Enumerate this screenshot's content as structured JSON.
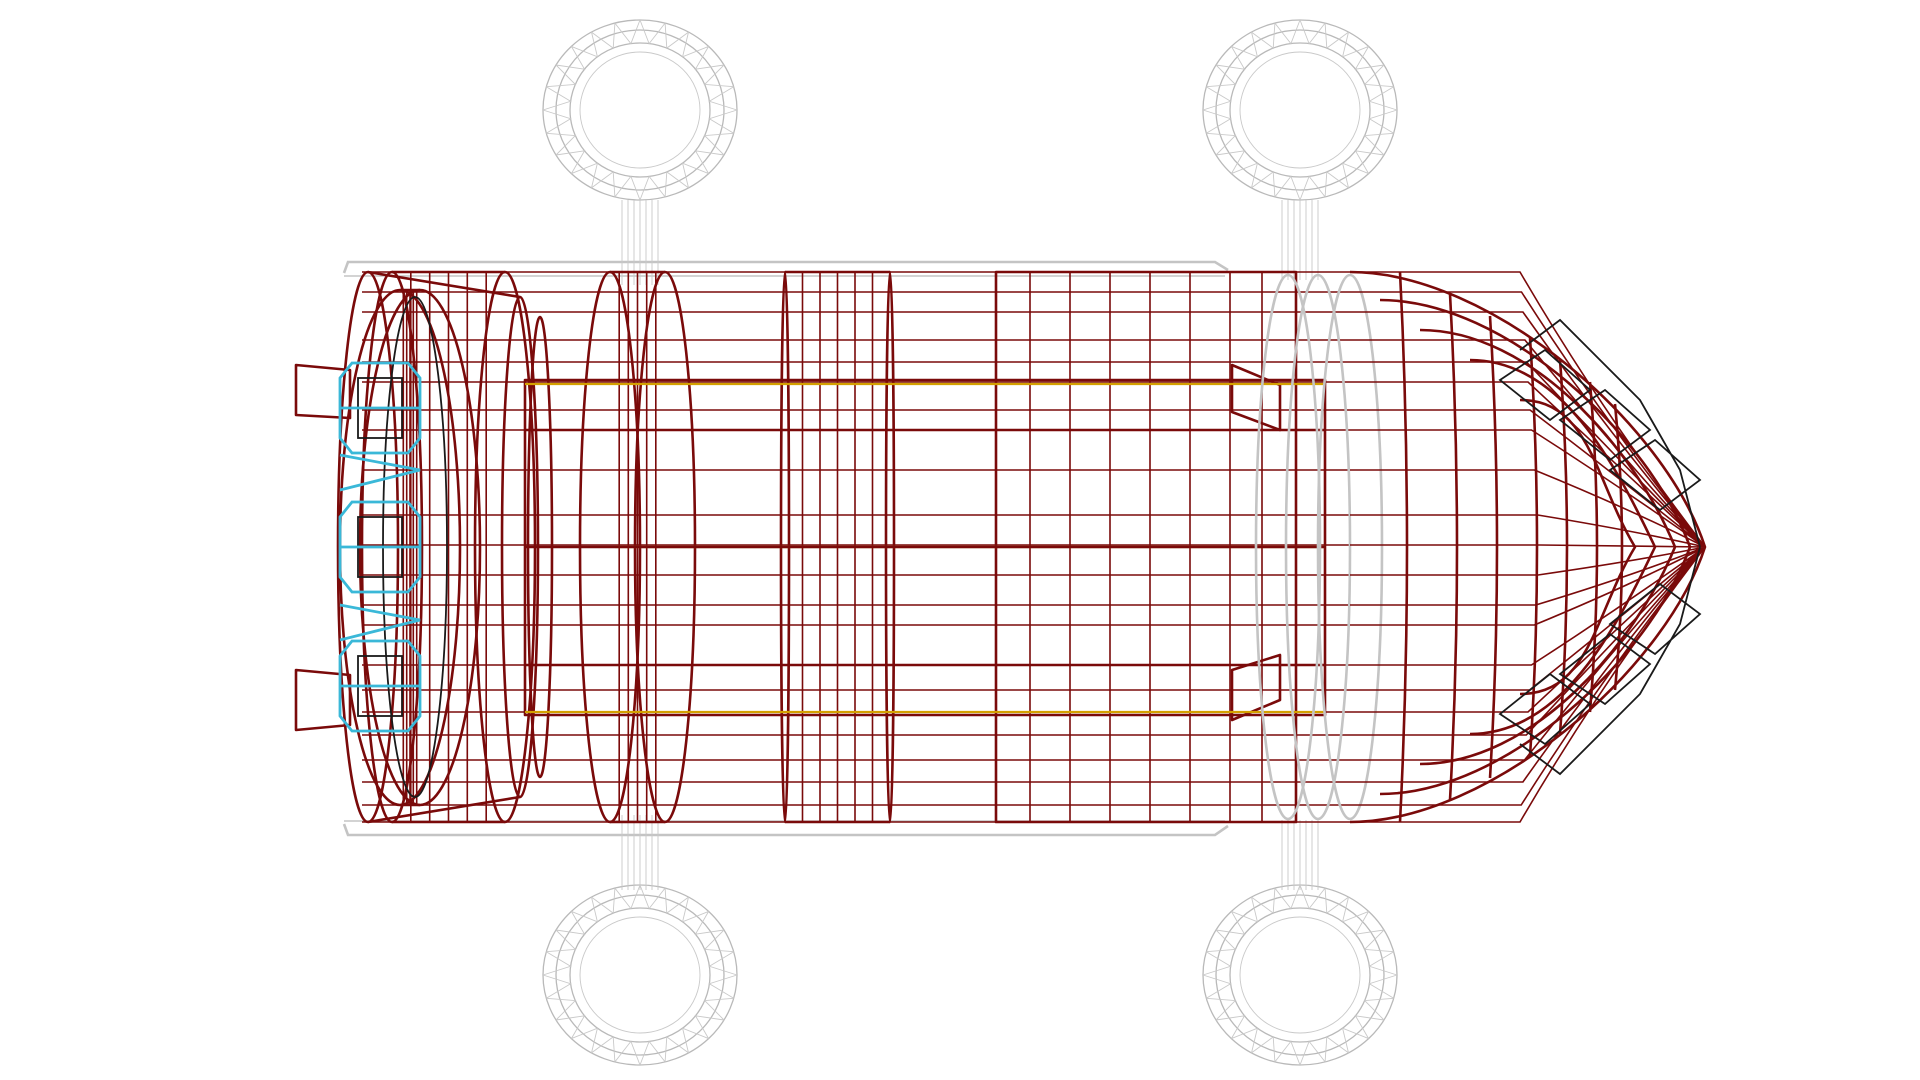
{
  "scene": {
    "subject": "wireframe-vehicle-top-view",
    "colors": {
      "background": "#ffffff",
      "hull": "#7a0a0a",
      "nose_mesh": "#1a1a1a",
      "wheels": "#b9b9b9",
      "frame": "#c4c4c4",
      "rear_engines": "#3ab8d8",
      "axis_lines": "#d4a000"
    },
    "wheel_count": 4,
    "hull_ring_count": 5
  }
}
